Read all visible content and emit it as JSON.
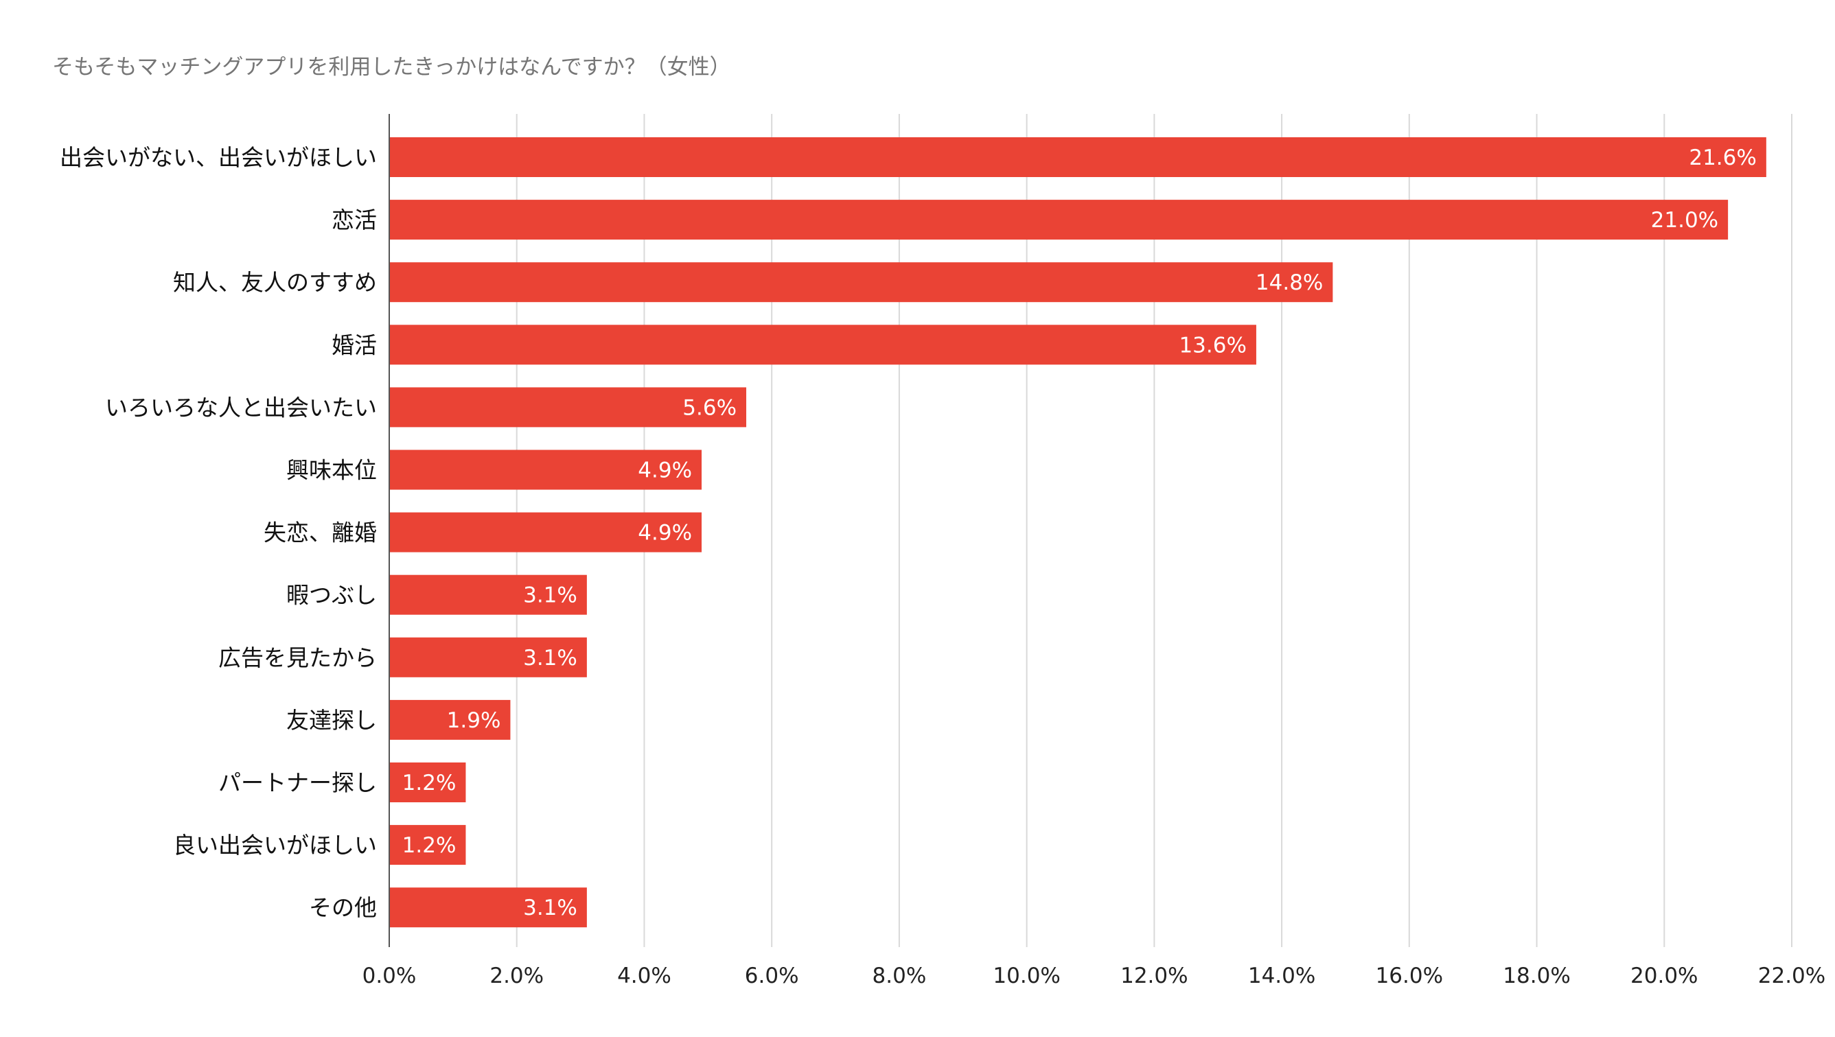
{
  "chart_data": {
    "type": "bar",
    "orientation": "horizontal",
    "title": "そもそもマッチングアプリを利用したきっかけはなんですか？（女性）",
    "xlabel": "",
    "ylabel": "",
    "xlim": [
      0,
      22
    ],
    "x_ticks": [
      0,
      2,
      4,
      6,
      8,
      10,
      12,
      14,
      16,
      18,
      20,
      22
    ],
    "x_tick_labels": [
      "0.0%",
      "2.0%",
      "4.0%",
      "6.0%",
      "8.0%",
      "10.0%",
      "12.0%",
      "14.0%",
      "16.0%",
      "18.0%",
      "20.0%",
      "22.0%"
    ],
    "grid": true,
    "legend": "none",
    "bar_color": "#ea4335",
    "categories": [
      "出会いがない、出会いがほしい",
      "恋活",
      "知人、友人のすすめ",
      "婚活",
      "いろいろな人と出会いたい",
      "興味本位",
      "失恋、離婚",
      "暇つぶし",
      "広告を見たから",
      "友達探し",
      "パートナー探し",
      "良い出会いがほしい",
      "その他"
    ],
    "values": [
      21.6,
      21.0,
      14.8,
      13.6,
      5.6,
      4.9,
      4.9,
      3.1,
      3.1,
      1.9,
      1.2,
      1.2,
      3.1
    ],
    "data_labels": [
      "21.6%",
      "21.0%",
      "14.8%",
      "13.6%",
      "5.6%",
      "4.9%",
      "4.9%",
      "3.1%",
      "3.1%",
      "1.9%",
      "1.2%",
      "1.2%",
      "3.1%"
    ]
  }
}
